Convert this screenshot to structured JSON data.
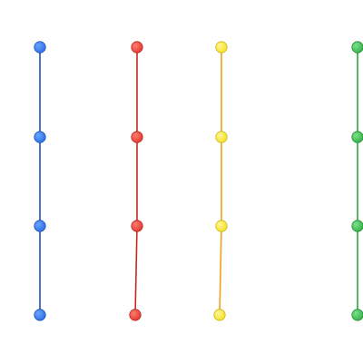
{
  "lines": [
    {
      "id": "blue",
      "line_color": "#1f4fb2",
      "node_color": "#2a6fe8",
      "node_edge_color": "#1f4fb2"
    },
    {
      "id": "red",
      "line_color": "#cc2a1e",
      "node_color": "#e53a2f",
      "node_edge_color": "#b3261e"
    },
    {
      "id": "yellow",
      "line_color": "#f0a21a",
      "node_color": "#f4e11e",
      "node_edge_color": "#c9b30e"
    },
    {
      "id": "green",
      "line_color": "#2aa83c",
      "node_color": "#34b24a",
      "node_edge_color": "#238a33"
    }
  ],
  "node_count_per_line": 4
}
